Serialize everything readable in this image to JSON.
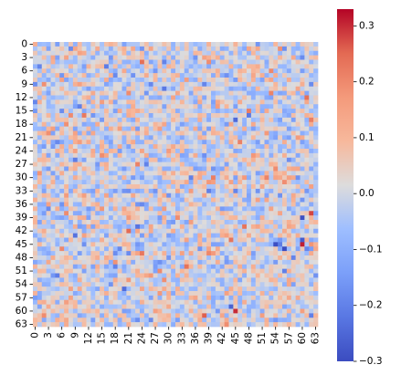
{
  "chart_data": {
    "type": "heatmap",
    "title": "",
    "xlabel": "",
    "ylabel": "",
    "rows": 64,
    "cols": 64,
    "x_tick_labels": [
      "0",
      "3",
      "6",
      "9",
      "12",
      "15",
      "18",
      "21",
      "24",
      "27",
      "30",
      "33",
      "36",
      "39",
      "42",
      "45",
      "48",
      "51",
      "54",
      "57",
      "60",
      "63"
    ],
    "y_tick_labels": [
      "0",
      "3",
      "6",
      "9",
      "12",
      "15",
      "18",
      "21",
      "24",
      "27",
      "30",
      "33",
      "36",
      "39",
      "42",
      "45",
      "48",
      "51",
      "54",
      "57",
      "60",
      "63"
    ],
    "value_range": [
      -0.3,
      0.33
    ],
    "colormap": "coolwarm",
    "distribution": "approximately random values, mostly within ±0.15, with sparse extremes near ±0.3",
    "colorbar": {
      "ticks": [
        -0.3,
        -0.2,
        -0.1,
        0.0,
        0.1,
        0.2,
        0.3
      ],
      "tick_labels": [
        "−0.3",
        "−0.2",
        "−0.1",
        "0.0",
        "0.1",
        "0.2",
        "0.3"
      ]
    },
    "notable_cells": [
      {
        "row": 45,
        "col": 60,
        "value": 0.31
      },
      {
        "row": 38,
        "col": 62,
        "value": 0.28
      },
      {
        "row": 60,
        "col": 45,
        "value": 0.3
      },
      {
        "row": 61,
        "col": 38,
        "value": 0.26
      },
      {
        "row": 39,
        "col": 60,
        "value": -0.29
      },
      {
        "row": 44,
        "col": 60,
        "value": -0.27
      },
      {
        "row": 59,
        "col": 44,
        "value": -0.26
      },
      {
        "row": 12,
        "col": 61,
        "value": 0.24
      },
      {
        "row": 10,
        "col": 29,
        "value": -0.22
      },
      {
        "row": 52,
        "col": 5,
        "value": -0.21
      },
      {
        "row": 27,
        "col": 25,
        "value": -0.2
      },
      {
        "row": 18,
        "col": 7,
        "value": 0.19
      }
    ]
  }
}
